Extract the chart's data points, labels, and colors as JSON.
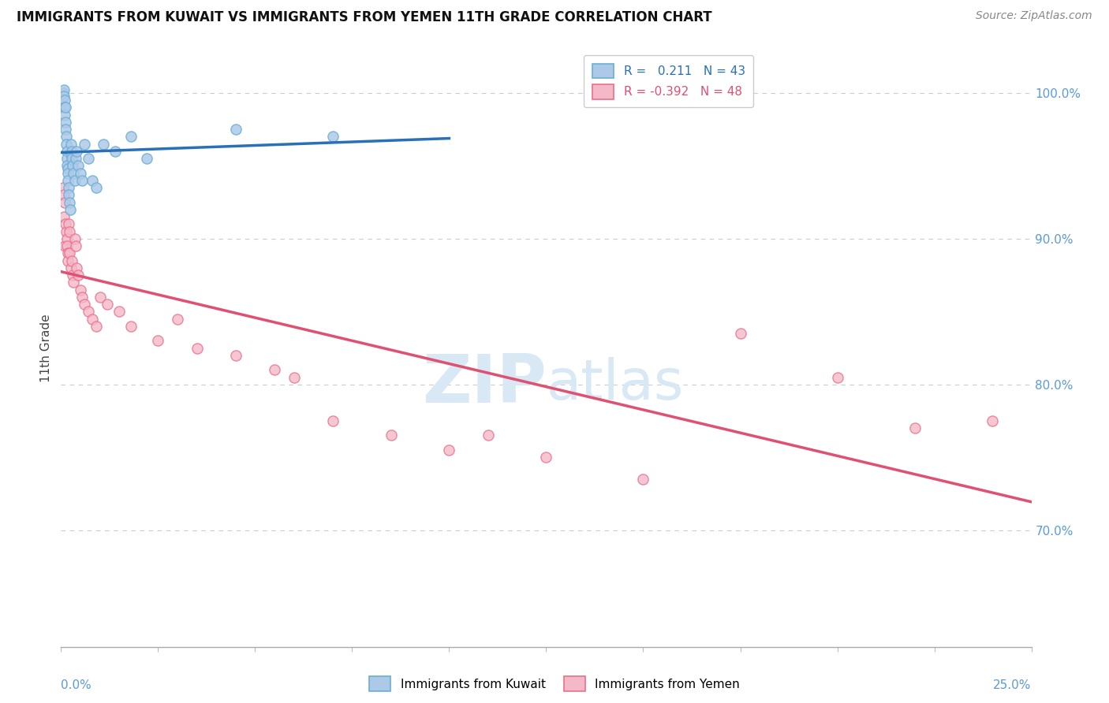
{
  "title": "IMMIGRANTS FROM KUWAIT VS IMMIGRANTS FROM YEMEN 11TH GRADE CORRELATION CHART",
  "source": "Source: ZipAtlas.com",
  "ylabel": "11th Grade",
  "xlim": [
    0.0,
    25.0
  ],
  "ylim": [
    62.0,
    103.0
  ],
  "yticks": [
    70.0,
    80.0,
    90.0,
    100.0
  ],
  "ytick_labels": [
    "70.0%",
    "80.0%",
    "90.0%",
    "100.0%"
  ],
  "r_kuwait": 0.211,
  "n_kuwait": 43,
  "r_yemen": -0.392,
  "n_yemen": 48,
  "kuwait_fill": "#adc9e8",
  "kuwait_edge": "#6aaed6",
  "yemen_fill": "#f5b8c8",
  "yemen_edge": "#e8708a",
  "blue_line_color": "#2870b8",
  "pink_line_color": "#e05070",
  "axis_label_color": "#5b9bd5",
  "background_color": "#ffffff",
  "title_fontsize": 12,
  "source_fontsize": 10,
  "watermark_color": "#d8e8f4",
  "kuwait_x": [
    0.05,
    0.07,
    0.08,
    0.09,
    0.1,
    0.1,
    0.11,
    0.12,
    0.12,
    0.13,
    0.14,
    0.15,
    0.15,
    0.16,
    0.17,
    0.18,
    0.18,
    0.2,
    0.2,
    0.22,
    0.23,
    0.25,
    0.25,
    0.27,
    0.28,
    0.3,
    0.32,
    0.35,
    0.38,
    0.4,
    0.45,
    0.5,
    0.55,
    0.6,
    0.7,
    0.8,
    0.9,
    1.1,
    1.4,
    1.8,
    2.2,
    4.5,
    7.0
  ],
  "kuwait_y": [
    100.0,
    100.2,
    99.8,
    99.5,
    99.0,
    98.5,
    98.0,
    97.5,
    99.0,
    97.0,
    96.5,
    96.0,
    95.5,
    95.0,
    94.8,
    94.5,
    94.0,
    93.5,
    93.0,
    92.5,
    92.0,
    96.5,
    95.8,
    96.0,
    95.5,
    95.0,
    94.5,
    94.0,
    95.5,
    96.0,
    95.0,
    94.5,
    94.0,
    96.5,
    95.5,
    94.0,
    93.5,
    96.5,
    96.0,
    97.0,
    95.5,
    97.5,
    97.0
  ],
  "yemen_x": [
    0.05,
    0.07,
    0.08,
    0.1,
    0.1,
    0.12,
    0.13,
    0.15,
    0.15,
    0.17,
    0.18,
    0.2,
    0.22,
    0.22,
    0.25,
    0.28,
    0.3,
    0.32,
    0.35,
    0.38,
    0.4,
    0.45,
    0.5,
    0.55,
    0.6,
    0.7,
    0.8,
    0.9,
    1.0,
    1.2,
    1.5,
    1.8,
    2.5,
    3.0,
    3.5,
    4.5,
    5.5,
    6.0,
    7.0,
    8.5,
    10.0,
    11.0,
    12.5,
    15.0,
    17.5,
    20.0,
    22.0,
    24.0
  ],
  "yemen_y": [
    93.5,
    93.0,
    91.5,
    92.5,
    89.5,
    91.0,
    90.5,
    90.0,
    89.5,
    89.0,
    88.5,
    91.0,
    90.5,
    89.0,
    88.0,
    88.5,
    87.5,
    87.0,
    90.0,
    89.5,
    88.0,
    87.5,
    86.5,
    86.0,
    85.5,
    85.0,
    84.5,
    84.0,
    86.0,
    85.5,
    85.0,
    84.0,
    83.0,
    84.5,
    82.5,
    82.0,
    81.0,
    80.5,
    77.5,
    76.5,
    75.5,
    76.5,
    75.0,
    73.5,
    83.5,
    80.5,
    77.0,
    77.5
  ]
}
